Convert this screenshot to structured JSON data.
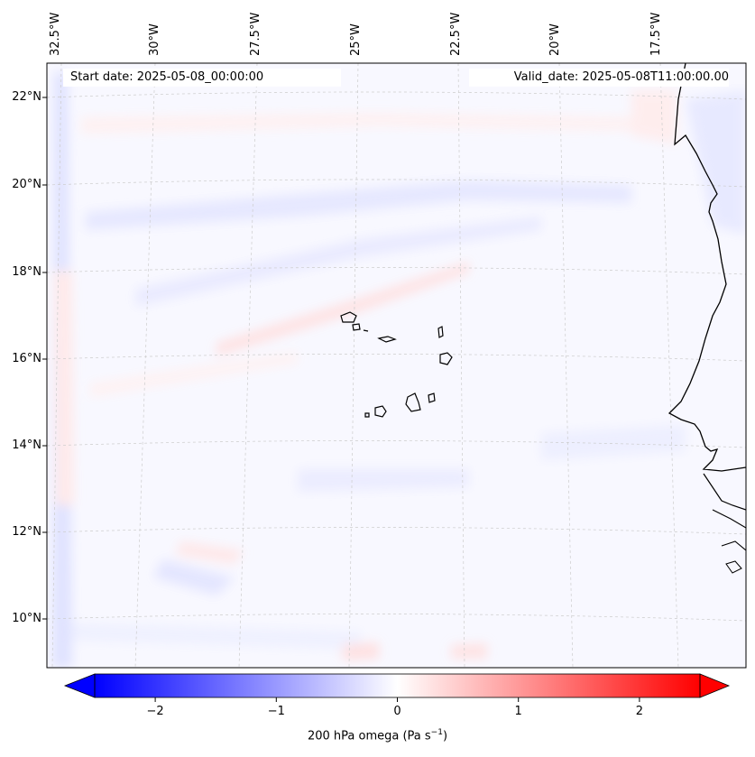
{
  "map": {
    "start_date": "Start date: 2025-05-08_00:00:00",
    "valid_date": "Valid_date: 2025-05-08T11:00:00.00",
    "lon_labels": [
      "32.5°W",
      "30°W",
      "27.5°W",
      "25°W",
      "22.5°W",
      "20°W",
      "17.5°W"
    ],
    "lat_labels": [
      "22°N",
      "20°N",
      "18°N",
      "16°N",
      "14°N",
      "12°N",
      "10°N"
    ]
  },
  "colorbar": {
    "ticks": [
      "−2",
      "−1",
      "0",
      "1",
      "2"
    ],
    "tick_values": [
      -2,
      -1,
      0,
      1,
      2
    ],
    "range": [
      -2.5,
      2.5
    ],
    "label_text": "200 hPa omega (Pa s",
    "label_exponent": "−1",
    "label_close": ")",
    "colors": {
      "low": "#0000ff",
      "mid": "#ffffff",
      "high": "#ff0000"
    }
  }
}
